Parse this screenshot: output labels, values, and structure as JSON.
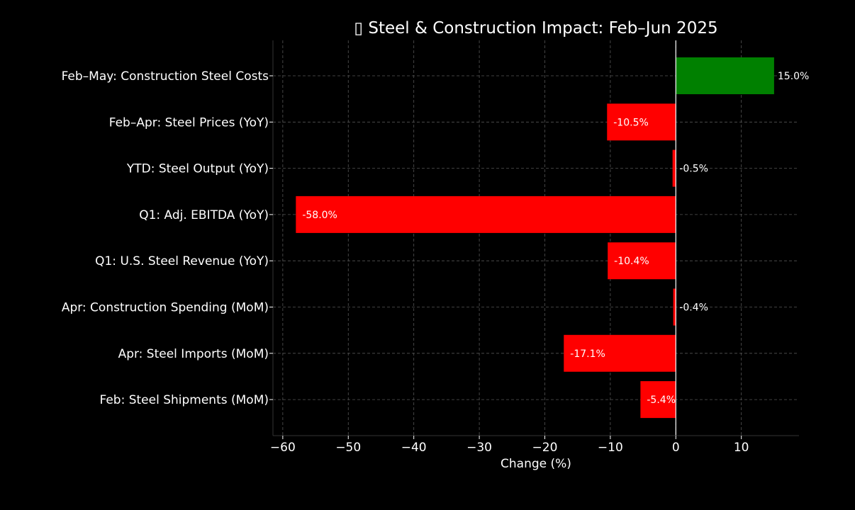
{
  "chart_data": {
    "type": "bar",
    "orientation": "horizontal",
    "title": "▯ Steel & Construction Impact: Feb–Jun 2025",
    "xlabel": "Change (%)",
    "ylabel": "",
    "xlim": [
      -61.5,
      18.8
    ],
    "xticks": [
      -60,
      -50,
      -40,
      -30,
      -20,
      -10,
      0,
      10
    ],
    "xtick_labels": [
      "−60",
      "−50",
      "−40",
      "−30",
      "−20",
      "−10",
      "0",
      "10"
    ],
    "grid": true,
    "categories": [
      "Feb–May: Construction Steel Costs",
      "Feb–Apr: Steel Prices (YoY)",
      "YTD: Steel Output (YoY)",
      "Q1: Adj. EBITDA (YoY)",
      "Q1: U.S. Steel Revenue (YoY)",
      "Apr: Construction Spending (MoM)",
      "Apr: Steel Imports (MoM)",
      "Feb: Steel Shipments (MoM)"
    ],
    "values": [
      15.0,
      -10.5,
      -0.5,
      -58.0,
      -10.4,
      -0.4,
      -17.1,
      -5.4
    ],
    "value_labels": [
      "15.0%",
      "-10.5%",
      "-0.5%",
      "-58.0%",
      "-10.4%",
      "-0.4%",
      "-17.1%",
      "-5.4%"
    ],
    "colors": {
      "positive": "#008000",
      "negative": "#ff0000",
      "background": "#000000",
      "text": "#ffffff",
      "grid": "#555555",
      "zero_line": "#ffffff"
    }
  }
}
